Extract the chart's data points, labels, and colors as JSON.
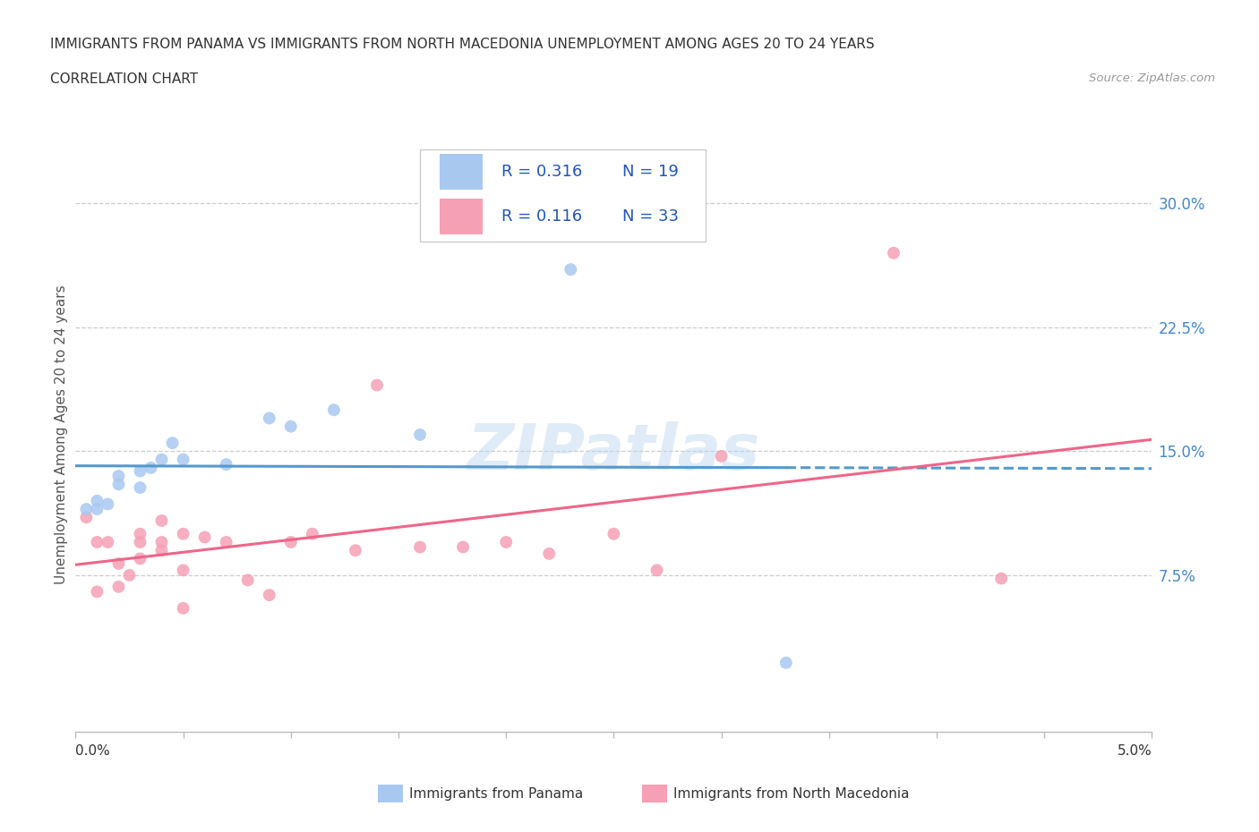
{
  "title_line1": "IMMIGRANTS FROM PANAMA VS IMMIGRANTS FROM NORTH MACEDONIA UNEMPLOYMENT AMONG AGES 20 TO 24 YEARS",
  "title_line2": "CORRELATION CHART",
  "source": "Source: ZipAtlas.com",
  "ylabel": "Unemployment Among Ages 20 to 24 years",
  "xlim": [
    0.0,
    0.05
  ],
  "ylim": [
    -0.02,
    0.34
  ],
  "ytick_vals": [
    0.075,
    0.15,
    0.225,
    0.3
  ],
  "ytick_labels": [
    "7.5%",
    "15.0%",
    "22.5%",
    "30.0%"
  ],
  "color_panama": "#a8c8f0",
  "color_macedonia": "#f5a0b5",
  "color_panama_line": "#5599cc",
  "color_macedonia_line": "#ee6688",
  "color_ytick": "#4488cc",
  "watermark": "ZIPatlas",
  "R_panama": "0.316",
  "N_panama": "19",
  "R_macedonia": "0.116",
  "N_macedonia": "33",
  "scatter_panama_x": [
    0.0005,
    0.001,
    0.001,
    0.0015,
    0.002,
    0.002,
    0.003,
    0.003,
    0.0035,
    0.004,
    0.0045,
    0.005,
    0.007,
    0.009,
    0.01,
    0.012,
    0.016,
    0.023,
    0.033
  ],
  "scatter_panama_y": [
    0.115,
    0.12,
    0.115,
    0.118,
    0.13,
    0.135,
    0.128,
    0.138,
    0.14,
    0.145,
    0.155,
    0.145,
    0.142,
    0.17,
    0.165,
    0.175,
    0.16,
    0.26,
    0.022
  ],
  "scatter_macedonia_x": [
    0.0005,
    0.001,
    0.001,
    0.0015,
    0.002,
    0.002,
    0.0025,
    0.003,
    0.003,
    0.003,
    0.004,
    0.004,
    0.004,
    0.005,
    0.005,
    0.005,
    0.006,
    0.007,
    0.008,
    0.009,
    0.01,
    0.011,
    0.013,
    0.014,
    0.016,
    0.018,
    0.02,
    0.022,
    0.025,
    0.027,
    0.03,
    0.038,
    0.043
  ],
  "scatter_macedonia_y": [
    0.11,
    0.095,
    0.065,
    0.095,
    0.082,
    0.068,
    0.075,
    0.095,
    0.1,
    0.085,
    0.09,
    0.095,
    0.108,
    0.055,
    0.078,
    0.1,
    0.098,
    0.095,
    0.072,
    0.063,
    0.095,
    0.1,
    0.09,
    0.19,
    0.092,
    0.092,
    0.095,
    0.088,
    0.1,
    0.078,
    0.147,
    0.27,
    0.073
  ],
  "grid_color": "#cccccc",
  "background_color": "#ffffff"
}
